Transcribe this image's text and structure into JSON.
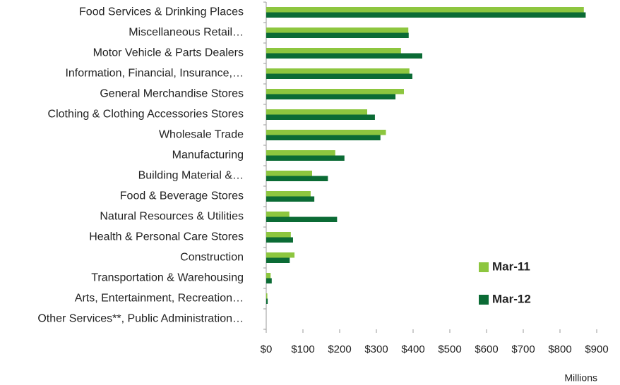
{
  "chart_data": {
    "type": "hbar",
    "categories": [
      "Food Services & Drinking Places",
      "Miscellaneous Retail…",
      "Motor Vehicle & Parts Dealers",
      "Information, Financial, Insurance,…",
      "General Merchandise Stores",
      "Clothing & Clothing Accessories Stores",
      "Wholesale Trade",
      "Manufacturing",
      "Building Material &…",
      "Food & Beverage Stores",
      "Natural Resources & Utilities",
      "Health & Personal Care Stores",
      "Construction",
      "Transportation & Warehousing",
      "Arts, Entertainment, Recreation…",
      "Other Services**, Public Administration…"
    ],
    "series": [
      {
        "name": "Mar-11",
        "color": "#8dc63f",
        "values": [
          865,
          387,
          367,
          390,
          375,
          275,
          326,
          188,
          125,
          121,
          63,
          67,
          77,
          12,
          3,
          0
        ]
      },
      {
        "name": "Mar-12",
        "color": "#0b6b35",
        "values": [
          870,
          388,
          425,
          398,
          352,
          296,
          311,
          213,
          168,
          131,
          193,
          73,
          64,
          15,
          4,
          0
        ]
      }
    ],
    "xlim": [
      0,
      900
    ],
    "xticks": [
      {
        "value": 0,
        "label": "$0"
      },
      {
        "value": 100,
        "label": "$100"
      },
      {
        "value": 200,
        "label": "$200"
      },
      {
        "value": 300,
        "label": "$300"
      },
      {
        "value": 400,
        "label": "$400"
      },
      {
        "value": 500,
        "label": "$500"
      },
      {
        "value": 600,
        "label": "$600"
      },
      {
        "value": 700,
        "label": "$700"
      },
      {
        "value": 800,
        "label": "$800"
      },
      {
        "value": 900,
        "label": "$900"
      }
    ],
    "x_axis_label": "Millions",
    "legend_position": "lower right"
  }
}
